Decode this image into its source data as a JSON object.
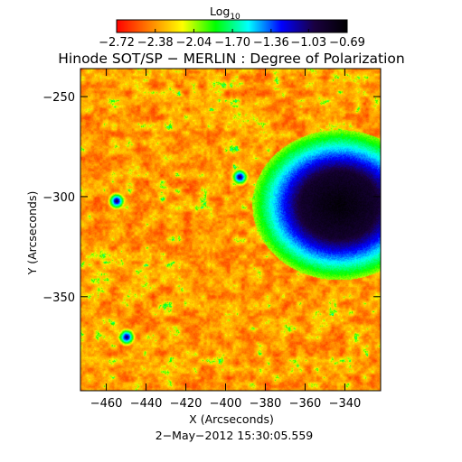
{
  "chart_data": {
    "type": "heatmap",
    "title": "Hinode SOT/SP − MERLIN : Degree of Polarization",
    "subtitle": "2−May−2012 15:30:05.559",
    "xlabel": "X (Arcseconds)",
    "ylabel": "Y (Arcseconds)",
    "xlim": [
      -473,
      -322
    ],
    "ylim": [
      -397,
      -236
    ],
    "x_ticks": [
      -460,
      -440,
      -420,
      -400,
      -380,
      -360,
      -340
    ],
    "x_tick_labels": [
      "−460",
      "−440",
      "−420",
      "−400",
      "−380",
      "−360",
      "−340"
    ],
    "y_ticks": [
      -250,
      -300,
      -350
    ],
    "y_tick_labels": [
      "−250",
      "−300",
      "−350"
    ],
    "colorbar": {
      "title": "Log",
      "title_subscript": "10",
      "range": [
        -2.72,
        -0.69
      ],
      "tick_values": [
        -2.72,
        -2.38,
        -2.04,
        -1.7,
        -1.36,
        -1.03,
        -0.69
      ],
      "tick_labels": [
        "−2.72",
        "−2.38",
        "−2.04",
        "−1.70",
        "−1.36",
        "−1.03",
        "−0.69"
      ],
      "colormap": [
        "#ff0000",
        "#ff8000",
        "#ffff00",
        "#00ff00",
        "#00ffff",
        "#0000ff",
        "#1a0040",
        "#000000"
      ]
    },
    "features": [
      {
        "kind": "sunspot umbra",
        "center": [
          -343,
          -304
        ],
        "value": -0.69
      },
      {
        "kind": "plage patch",
        "center": [
          -455,
          -302
        ],
        "value": -1.36
      },
      {
        "kind": "plage patch",
        "center": [
          -450,
          -370
        ],
        "value": -1.36
      },
      {
        "kind": "plage patch",
        "center": [
          -393,
          -290
        ],
        "value": -1.36
      }
    ]
  }
}
